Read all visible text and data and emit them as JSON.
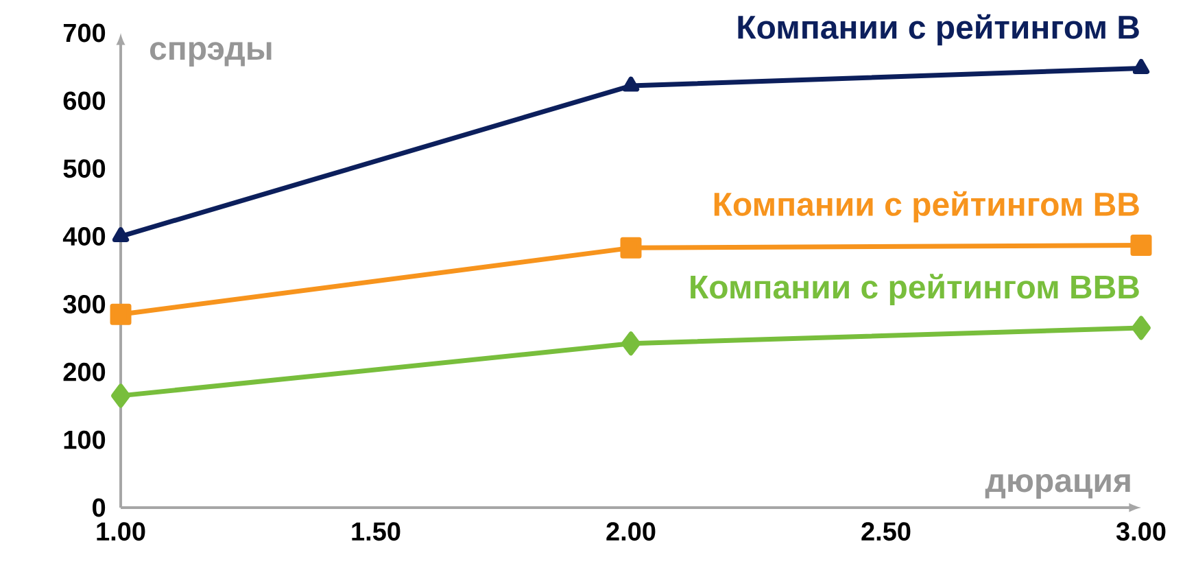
{
  "chart_data": {
    "type": "line",
    "xlabel": "дюрация",
    "ylabel": "спрэды",
    "x": [
      1,
      2,
      3
    ],
    "series": [
      {
        "name": "Компании с рейтингом B",
        "color": "#0c1f5c",
        "values": [
          400,
          622,
          648
        ],
        "marker": "triangle"
      },
      {
        "name": "Компании с рейтингом BB",
        "color": "#f7941d",
        "values": [
          285,
          383,
          387
        ],
        "marker": "square"
      },
      {
        "name": "Компании с рейтингом BBB",
        "color": "#78be3c",
        "values": [
          165,
          242,
          265
        ],
        "marker": "diamond"
      }
    ],
    "xlim": [
      1,
      3
    ],
    "ylim": [
      0,
      700
    ],
    "xticks": [
      {
        "value": 1,
        "label": "1.00"
      },
      {
        "value": 1.5,
        "label": "1.50"
      },
      {
        "value": 2,
        "label": "2.00"
      },
      {
        "value": 2.5,
        "label": "2.50"
      },
      {
        "value": 3,
        "label": "3.00"
      }
    ],
    "yticks": [
      0,
      100,
      200,
      300,
      400,
      500,
      600,
      700
    ],
    "grid": false,
    "line_style": "solid"
  }
}
